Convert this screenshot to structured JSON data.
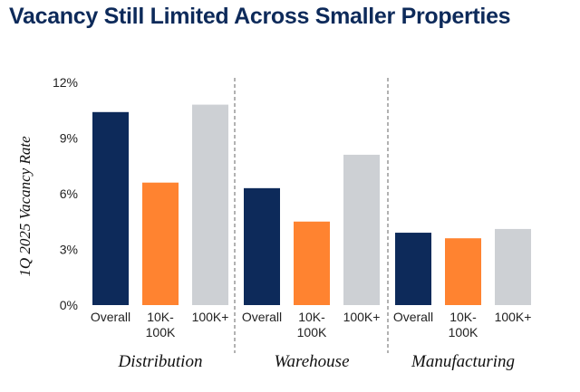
{
  "chart_data": {
    "type": "bar",
    "title": "Vacancy Still Limited Across Smaller Properties",
    "ylabel": "1Q 2025 Vacancy Rate",
    "xlabel": "",
    "ylim": [
      0,
      12
    ],
    "yticks": [
      "0%",
      "3%",
      "6%",
      "9%",
      "12%"
    ],
    "ytick_values": [
      0,
      3,
      6,
      9,
      12
    ],
    "grid": false,
    "categories": [
      "Overall",
      "10K-100K",
      "100K+"
    ],
    "category_lines": [
      [
        "Overall"
      ],
      [
        "10K-",
        "100K"
      ],
      [
        "100K+"
      ]
    ],
    "series_colors": [
      "#0d2a5a",
      "#ff8330",
      "#cdd0d4"
    ],
    "groups": [
      {
        "name": "Distribution",
        "values": [
          10.4,
          6.6,
          10.8
        ]
      },
      {
        "name": "Warehouse",
        "values": [
          6.3,
          4.5,
          8.1
        ]
      },
      {
        "name": "Manufacturing",
        "values": [
          3.9,
          3.6,
          4.1
        ]
      }
    ]
  }
}
